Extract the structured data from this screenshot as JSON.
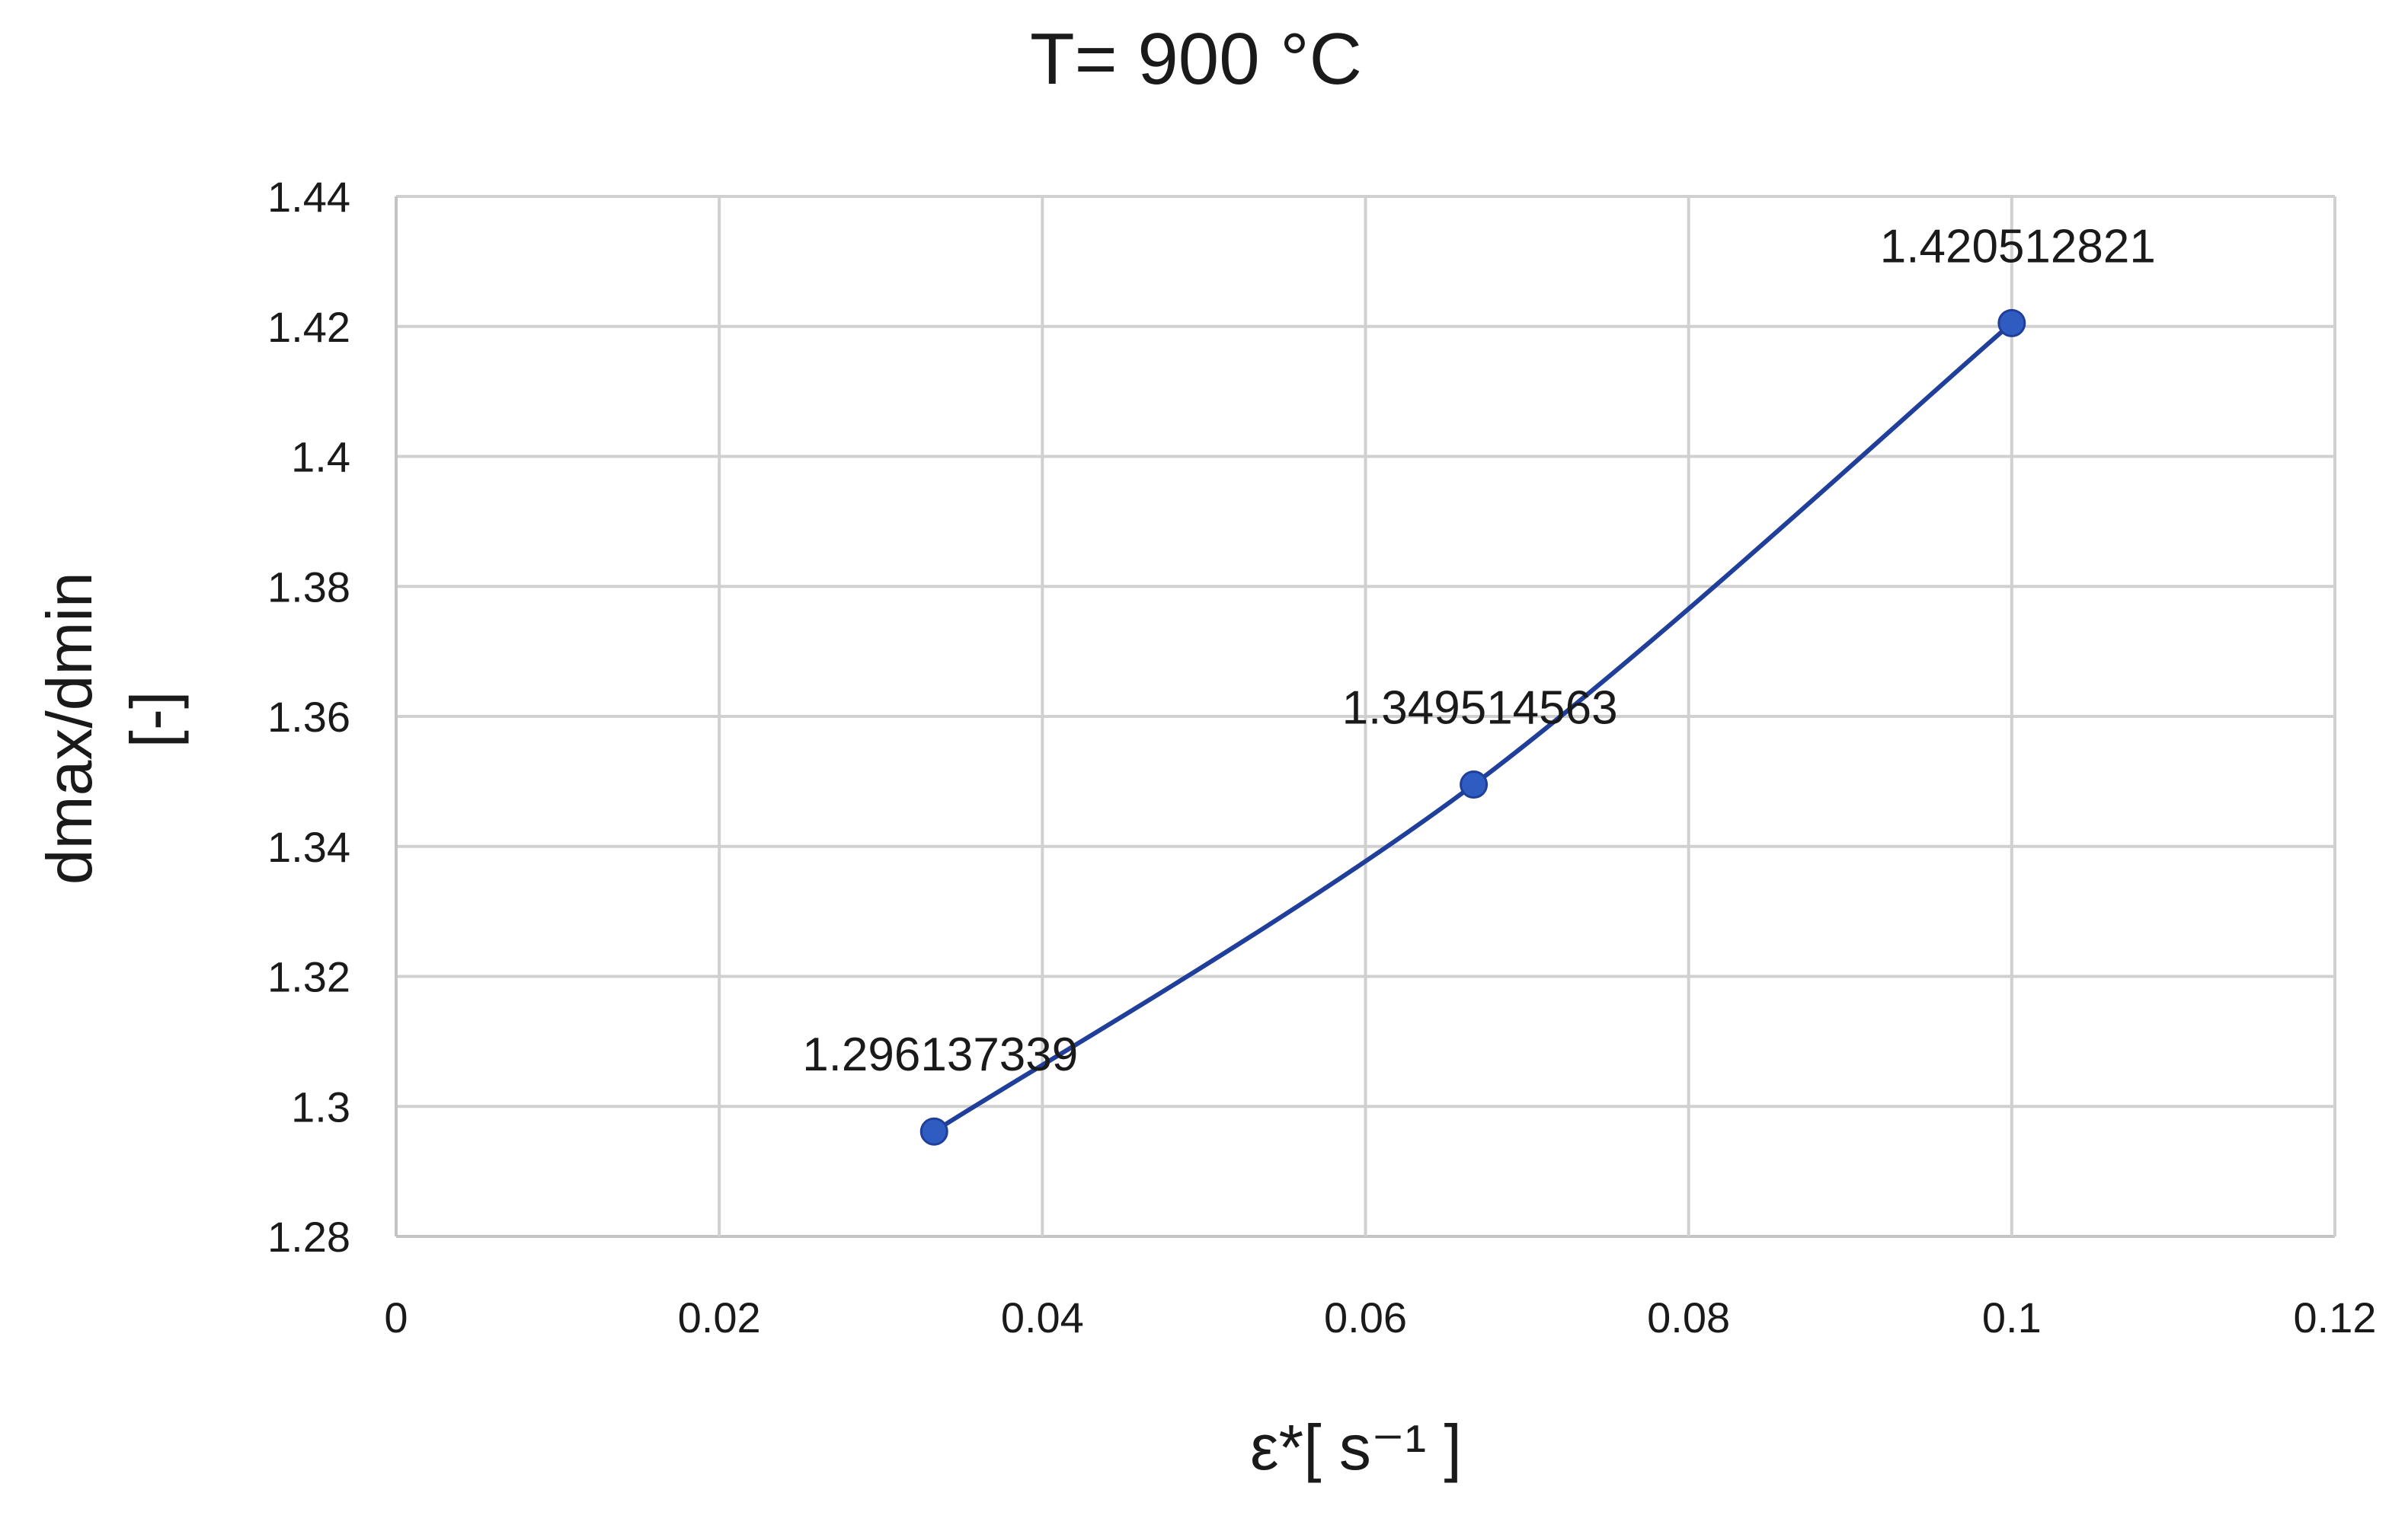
{
  "chart_data": {
    "type": "scatter",
    "title": "T= 900 °C",
    "xlabel": "ε*[ s⁻¹ ]",
    "ylabel_lines": [
      "dmax/dmin",
      "[-]"
    ],
    "xlim": [
      0,
      0.12
    ],
    "ylim": [
      1.28,
      1.44
    ],
    "x_ticks": [
      0,
      0.02,
      0.04,
      0.06,
      0.08,
      0.1,
      0.12
    ],
    "x_tick_labels": [
      "0",
      "0.02",
      "0.04",
      "0.06",
      "0.08",
      "0.1",
      "0.12"
    ],
    "y_ticks": [
      1.28,
      1.3,
      1.32,
      1.34,
      1.36,
      1.38,
      1.4,
      1.42,
      1.44
    ],
    "y_tick_labels": [
      "1.28",
      "1.3",
      "1.32",
      "1.34",
      "1.36",
      "1.38",
      "1.4",
      "1.42",
      "1.44"
    ],
    "grid": true,
    "smooth_line": true,
    "series": [
      {
        "color": "#1f3f9a",
        "marker_color": "#2f5cc0",
        "x": [
          0.0333,
          0.0667,
          0.1
        ],
        "y": [
          1.296137339,
          1.349514563,
          1.420512821
        ],
        "data_labels": [
          "1.296137339",
          "1.349514563",
          "1.420512821"
        ]
      }
    ]
  }
}
